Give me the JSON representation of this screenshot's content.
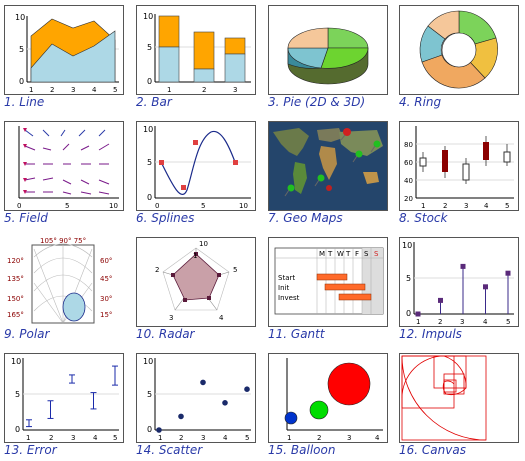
{
  "gallery": {
    "items": [
      {
        "label": "1. Line"
      },
      {
        "label": "2. Bar"
      },
      {
        "label": "3. Pie (2D & 3D)"
      },
      {
        "label": "4. Ring"
      },
      {
        "label": "5. Field"
      },
      {
        "label": "6. Splines"
      },
      {
        "label": "7. Geo Maps"
      },
      {
        "label": "8. Stock"
      },
      {
        "label": "9. Polar"
      },
      {
        "label": "10. Radar"
      },
      {
        "label": "11. Gantt"
      },
      {
        "label": "12. Impuls"
      },
      {
        "label": "13. Error"
      },
      {
        "label": "14. Scatter"
      },
      {
        "label": "15. Balloon"
      },
      {
        "label": "16. Canvas"
      }
    ]
  },
  "ticks": {
    "y_0_5_10": [
      "0",
      "5",
      "10"
    ],
    "x_1_5": [
      "1",
      "2",
      "3",
      "4",
      "5"
    ],
    "x_1_4": [
      "1",
      "2",
      "3",
      "4"
    ],
    "stock_y": [
      "20",
      "40",
      "60",
      "80"
    ],
    "field_x": [
      "0",
      "5",
      "10"
    ],
    "spline_x": [
      "0",
      "5",
      "10"
    ],
    "polar_left": [
      "120°",
      "135°",
      "150°",
      "165°"
    ],
    "polar_right": [
      "60°",
      "45°",
      "30°",
      "15°"
    ],
    "polar_top": "105° 90° 75°",
    "radar_axes": [
      "1",
      "2",
      "3",
      "4",
      "5"
    ],
    "radar_ring": "10",
    "gantt_days": [
      "M",
      "T",
      "W",
      "T",
      "F",
      "S",
      "S"
    ],
    "gantt_tasks": [
      "Start",
      "Init",
      "Invest"
    ]
  },
  "colors": {
    "accent_caption": "#2a3aa8",
    "line_area_top": "#ffa500",
    "line_area_bottom": "#add8e6",
    "stock_bar": "#8b0000",
    "gantt_bar": "#ff6a2a",
    "balloon_red": "#ff0000",
    "balloon_green": "#00dd00",
    "balloon_blue": "#0033cc",
    "impuls_marker": "#5a2a7a",
    "error_marker": "#1a2aaa"
  },
  "chart_data": [
    {
      "type": "area",
      "categories": [
        "1",
        "2",
        "3",
        "4",
        "5"
      ],
      "series": [
        {
          "values": [
            2,
            6,
            4,
            5,
            8
          ]
        },
        {
          "values": [
            7,
            9,
            8,
            9,
            6
          ]
        }
      ],
      "ylim": [
        0,
        10
      ]
    },
    {
      "type": "bar",
      "categories": [
        "1",
        "2",
        "3"
      ],
      "series": [
        {
          "values": [
            5,
            2,
            4
          ]
        },
        {
          "values": [
            10,
            7,
            6
          ]
        }
      ],
      "ylim": [
        0,
        10
      ]
    },
    {
      "type": "scatter",
      "x": [
        1,
        2,
        3,
        4,
        5
      ],
      "y": [
        0,
        2,
        7,
        4,
        6
      ],
      "ylim": [
        0,
        10
      ]
    },
    {
      "type": "scatter",
      "x": [
        1,
        2,
        3,
        4,
        5
      ],
      "y": [
        1,
        3,
        7.5,
        4.3,
        8
      ],
      "ylim": [
        0,
        10
      ]
    },
    {
      "type": "scatter",
      "x": [
        1,
        2,
        3,
        4,
        5
      ],
      "y": [
        0,
        2,
        7,
        4,
        6
      ],
      "ylim": [
        0,
        10
      ]
    }
  ]
}
